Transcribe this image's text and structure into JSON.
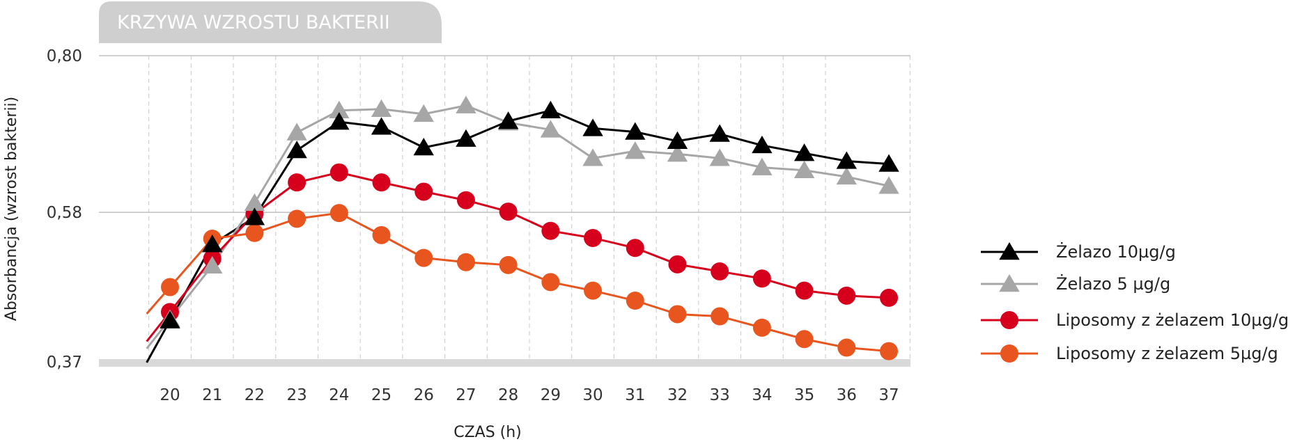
{
  "chart_data": {
    "type": "line",
    "title": "KRZYWA WZROSTU BAKTERII",
    "xlabel": "CZAS (h)",
    "ylabel": "Absorbancja (wzrost bakterii)",
    "x": [
      20,
      21,
      22,
      23,
      24,
      25,
      26,
      27,
      28,
      29,
      30,
      31,
      32,
      33,
      34,
      35,
      36,
      37
    ],
    "x_tick_labels": [
      "20",
      "21",
      "22",
      "23",
      "24",
      "25",
      "26",
      "27",
      "28",
      "29",
      "30",
      "31",
      "32",
      "33",
      "34",
      "35",
      "36",
      "37"
    ],
    "ylim": [
      0.37,
      0.8
    ],
    "y_ticks": [
      0.37,
      0.58,
      0.8
    ],
    "y_tick_labels": [
      "0,37",
      "0,58",
      "0,80"
    ],
    "grid": true,
    "legend_position": "right",
    "series": [
      {
        "name": "Żelazo 10µg/g",
        "color": "#000000",
        "marker": "triangle",
        "values": [
          0.428,
          0.535,
          0.573,
          0.667,
          0.707,
          0.7,
          0.671,
          0.683,
          0.708,
          0.723,
          0.698,
          0.693,
          0.68,
          0.69,
          0.674,
          0.663,
          0.652,
          0.648
        ]
      },
      {
        "name": "Żelazo 5 µg/g",
        "color": "#a6a6a6",
        "marker": "triangle",
        "values": [
          0.43,
          0.505,
          0.593,
          0.692,
          0.723,
          0.725,
          0.718,
          0.73,
          0.706,
          0.696,
          0.656,
          0.666,
          0.662,
          0.656,
          0.643,
          0.639,
          0.63,
          0.617
        ]
      },
      {
        "name": "Liposomy z żelazem 10µg/g",
        "color": "#d6001c",
        "marker": "circle",
        "values": [
          0.44,
          0.515,
          0.578,
          0.622,
          0.636,
          0.622,
          0.609,
          0.597,
          0.581,
          0.554,
          0.544,
          0.53,
          0.507,
          0.497,
          0.487,
          0.47,
          0.463,
          0.46
        ]
      },
      {
        "name": "Liposomy z żelazem 5µg/g",
        "color": "#e8551e",
        "marker": "circle",
        "values": [
          0.475,
          0.543,
          0.551,
          0.571,
          0.579,
          0.548,
          0.516,
          0.51,
          0.506,
          0.482,
          0.47,
          0.456,
          0.437,
          0.434,
          0.418,
          0.402,
          0.39,
          0.385
        ]
      }
    ]
  }
}
